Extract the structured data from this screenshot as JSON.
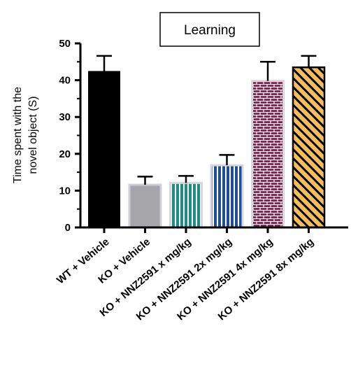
{
  "chart_data": {
    "type": "bar",
    "title": "Learning",
    "ylabel_lines": [
      "Time spent with the",
      "novel object (S)"
    ],
    "xlabel": "",
    "ylim": [
      0,
      50
    ],
    "yticks": [
      0,
      10,
      20,
      30,
      40,
      50
    ],
    "categories": [
      "WT + Vehicle",
      "KO + Vehicle",
      "KO + NNZ2591 x mg/kg",
      "KO + NNZ2591 2x mg/kg",
      "KO + NNZ2591 4x mg/kg",
      "KO + NNZ2591 8x mg/kg"
    ],
    "values": [
      42.4,
      11.6,
      12.1,
      16.9,
      39.8,
      43.5
    ],
    "errors": [
      4.2,
      2.2,
      1.9,
      2.8,
      5.2,
      3.1
    ],
    "colors": [
      "#000000",
      "#a6a6aa",
      "#1e8c86",
      "#1f4e96",
      "#8b1a4b",
      "#f6be5a"
    ],
    "patterns": [
      "solid",
      "solid",
      "vertical-stripes",
      "vertical-stripes",
      "brick",
      "diagonal-stripes"
    ],
    "grid": false,
    "legend": "none"
  }
}
